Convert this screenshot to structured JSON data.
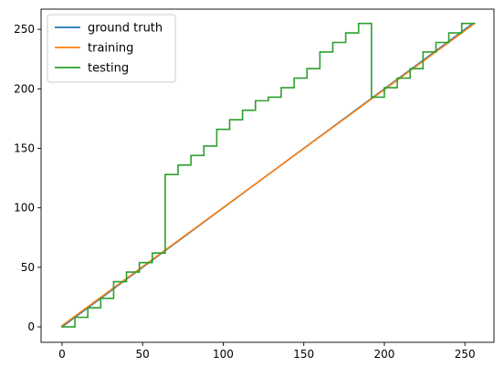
{
  "chart_data": {
    "type": "line",
    "title": "",
    "xlabel": "",
    "ylabel": "",
    "xlim": [
      -13,
      268
    ],
    "ylim": [
      -13,
      267
    ],
    "x_ticks": [
      0,
      50,
      100,
      150,
      200,
      250
    ],
    "y_ticks": [
      0,
      50,
      100,
      150,
      200,
      250
    ],
    "x_tick_labels": [
      "0",
      "50",
      "100",
      "150",
      "200",
      "250"
    ],
    "y_tick_labels": [
      "0",
      "50",
      "100",
      "150",
      "200",
      "250"
    ],
    "grid": false,
    "legend": "upper-left",
    "series": [
      {
        "name": "ground truth",
        "color": "#1f77b4",
        "x": [
          0,
          255
        ],
        "y": [
          0,
          255
        ]
      },
      {
        "name": "training",
        "color": "#ff7f0e",
        "x": [
          0,
          255
        ],
        "y": [
          1,
          254
        ]
      },
      {
        "name": "testing",
        "color": "#2ca02c",
        "step": "quantized",
        "x": [
          0,
          8,
          8,
          16,
          16,
          24,
          24,
          32,
          32,
          40,
          40,
          48,
          48,
          56,
          56,
          64,
          64,
          72,
          72,
          80,
          80,
          88,
          88,
          96,
          96,
          104,
          104,
          112,
          112,
          120,
          120,
          128,
          128,
          136,
          136,
          144,
          144,
          152,
          152,
          160,
          160,
          168,
          168,
          176,
          176,
          184,
          184,
          192,
          192,
          200,
          200,
          208,
          208,
          216,
          216,
          224,
          224,
          232,
          232,
          240,
          240,
          248,
          248,
          256
        ],
        "y": [
          0,
          0,
          8,
          8,
          16,
          16,
          24,
          24,
          38,
          38,
          46,
          46,
          54,
          54,
          62,
          62,
          128,
          128,
          136,
          136,
          144,
          144,
          152,
          152,
          166,
          166,
          174,
          174,
          182,
          182,
          190,
          190,
          193,
          193,
          201,
          201,
          209,
          209,
          217,
          217,
          231,
          231,
          239,
          239,
          247,
          247,
          255,
          255,
          193,
          193,
          201,
          201,
          209,
          209,
          217,
          217,
          231,
          231,
          239,
          239,
          247,
          247,
          255,
          255
        ]
      }
    ]
  }
}
